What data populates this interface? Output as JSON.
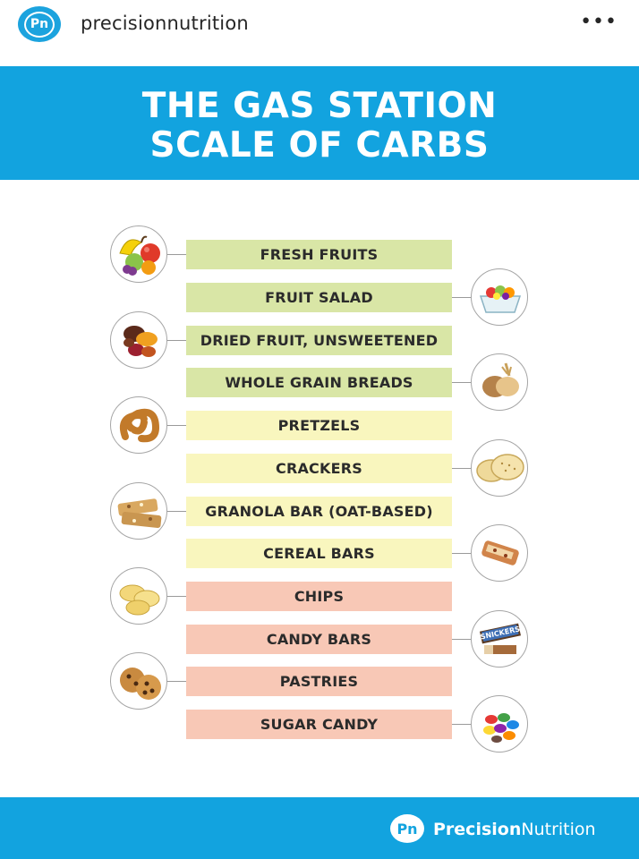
{
  "header": {
    "avatar_text": "Pn",
    "username": "precisionnutrition",
    "more_label": "•••"
  },
  "title": {
    "line1": "THE GAS STATION",
    "line2": "SCALE OF CARBS"
  },
  "scale_items": [
    {
      "label": "FRESH FRUITS",
      "tier": "green",
      "icon": "fruit-basket-icon",
      "side": "left"
    },
    {
      "label": "FRUIT SALAD",
      "tier": "green",
      "icon": "fruit-salad-icon",
      "side": "right"
    },
    {
      "label": "DRIED FRUIT, UNSWEETENED",
      "tier": "green",
      "icon": "dried-fruit-icon",
      "side": "left"
    },
    {
      "label": "WHOLE GRAIN BREADS",
      "tier": "green",
      "icon": "bread-icon",
      "side": "right"
    },
    {
      "label": "PRETZELS",
      "tier": "yellow",
      "icon": "pretzel-icon",
      "side": "left"
    },
    {
      "label": "CRACKERS",
      "tier": "yellow",
      "icon": "crackers-icon",
      "side": "right"
    },
    {
      "label": "GRANOLA BAR (OAT-BASED)",
      "tier": "yellow",
      "icon": "granola-bar-icon",
      "side": "left"
    },
    {
      "label": "CEREAL BARS",
      "tier": "yellow",
      "icon": "cereal-bar-icon",
      "side": "right"
    },
    {
      "label": "CHIPS",
      "tier": "pink",
      "icon": "chips-icon",
      "side": "left"
    },
    {
      "label": "CANDY BARS",
      "tier": "pink",
      "icon": "candy-bar-icon",
      "side": "right"
    },
    {
      "label": "PASTRIES",
      "tier": "pink",
      "icon": "pastries-icon",
      "side": "left"
    },
    {
      "label": "SUGAR CANDY",
      "tier": "pink",
      "icon": "sugar-candy-icon",
      "side": "right"
    }
  ],
  "colors": {
    "brand_blue": "#12a3df",
    "green_tier": "#d9e6a6",
    "yellow_tier": "#f9f6be",
    "pink_tier": "#f8c8b6"
  },
  "candy_bar_logo": "SNICKERS",
  "footer": {
    "logo_text": "Pn",
    "brand_part1": "Precision",
    "brand_part2": "Nutrition"
  }
}
